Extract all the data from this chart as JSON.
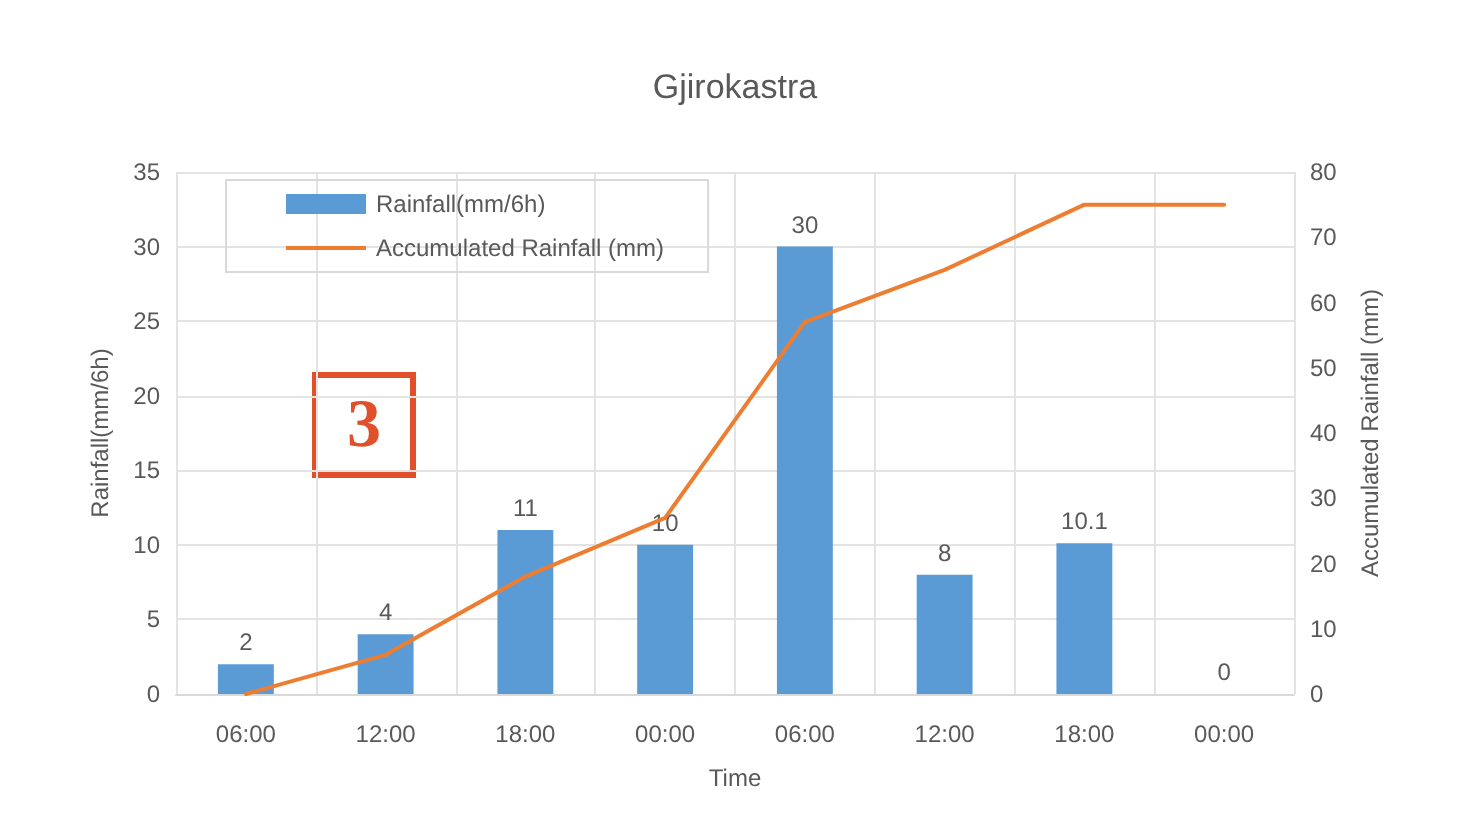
{
  "chart_data": {
    "type": "bar",
    "title": "Gjirokastra",
    "xlabel": "Time",
    "ylabel": "Rainfall(mm/6h)",
    "y2label": "Accumulated Rainfall (mm)",
    "categories": [
      "06:00",
      "12:00",
      "18:00",
      "00:00",
      "06:00",
      "12:00",
      "18:00",
      "00:00"
    ],
    "series": [
      {
        "name": "Rainfall(mm/6h)",
        "color": "#5b9bd5",
        "values": [
          2,
          4,
          11,
          10,
          30,
          8,
          10.1,
          0
        ],
        "value_labels": [
          "2",
          "4",
          "11",
          "10",
          "30",
          "8",
          "10.1",
          "0"
        ]
      },
      {
        "name": "Accumulated Rainfall (mm)",
        "type": "line",
        "axis": "y2",
        "color": "#ed7d31",
        "values": [
          0,
          6,
          18,
          27,
          57,
          65,
          75,
          75
        ]
      }
    ],
    "ylim": [
      0,
      35
    ],
    "yticks": [
      0,
      5,
      10,
      15,
      20,
      25,
      30,
      35
    ],
    "y2lim": [
      0,
      80
    ],
    "y2ticks": [
      0,
      10,
      20,
      30,
      40,
      50,
      60,
      70,
      80
    ],
    "grid": true,
    "legend": "top left",
    "marker": "none",
    "line_style": "solid",
    "annotations": [
      "3"
    ]
  }
}
